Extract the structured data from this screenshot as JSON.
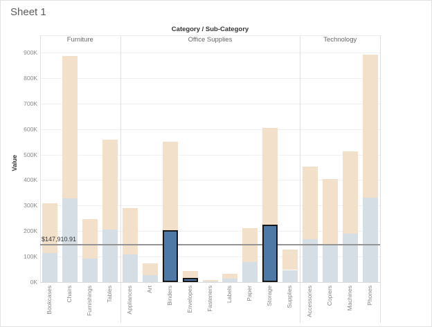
{
  "window": {
    "sheet_title": "Sheet 1"
  },
  "colors": {
    "bar_dim_blue": "#d5dde5",
    "bar_dim_orange": "#f2e0ca",
    "bar_selected_blue": "#4e79a7",
    "selection_border": "#161616",
    "reference_line": "#949494",
    "gridline": "#f0f0f0",
    "panel_border": "#e0e0e0",
    "axis_line": "#d9d9d9",
    "text_dark": "#333333",
    "text_gray": "#666666",
    "text_light": "#8a8a8a"
  },
  "chart_data": {
    "type": "bar",
    "stacked": true,
    "title": "Category / Sub-Category",
    "ylabel": "Value",
    "grid": true,
    "legend": "none",
    "ylim_k": [
      0,
      935
    ],
    "ytick_values_k": [
      0,
      100,
      200,
      300,
      400,
      500,
      600,
      700,
      800,
      900
    ],
    "ytick_labels": [
      "0K",
      "100K",
      "200K",
      "300K",
      "400K",
      "500K",
      "600K",
      "700K",
      "800K",
      "900K"
    ],
    "reference_line": {
      "value_k": 147.91,
      "label": "$147,910.91"
    },
    "series_names": [
      "blue-segment",
      "orange-segment"
    ],
    "groups": [
      {
        "label": "Furniture",
        "bars": [
          {
            "label": "Bookcases",
            "value_k": 114.9,
            "total_k": 310.2,
            "selected": false
          },
          {
            "label": "Chairs",
            "value_k": 328.4,
            "total_k": 886.8,
            "selected": false
          },
          {
            "label": "Furnishings",
            "value_k": 91.7,
            "total_k": 247.6,
            "selected": false
          },
          {
            "label": "Tables",
            "value_k": 207.0,
            "total_k": 558.9,
            "selected": false
          }
        ]
      },
      {
        "label": "Office Supplies",
        "bars": [
          {
            "label": "Appliances",
            "value_k": 107.5,
            "total_k": 290.3,
            "selected": false
          },
          {
            "label": "Art",
            "value_k": 27.1,
            "total_k": 73.2,
            "selected": false
          },
          {
            "label": "Binders",
            "value_k": 203.4,
            "total_k": 549.2,
            "selected": true
          },
          {
            "label": "Envelopes",
            "value_k": 16.5,
            "total_k": 44.5,
            "selected": true
          },
          {
            "label": "Fasteners",
            "value_k": 3.0,
            "total_k": 8.2,
            "selected": false
          },
          {
            "label": "Labels",
            "value_k": 12.5,
            "total_k": 33.7,
            "selected": false
          },
          {
            "label": "Paper",
            "value_k": 78.5,
            "total_k": 211.9,
            "selected": false
          },
          {
            "label": "Storage",
            "value_k": 223.8,
            "total_k": 604.3,
            "selected": true
          },
          {
            "label": "Supplies",
            "value_k": 46.7,
            "total_k": 126.1,
            "selected": false
          }
        ]
      },
      {
        "label": "Technology",
        "bars": [
          {
            "label": "Accessories",
            "value_k": 167.4,
            "total_k": 451.9,
            "selected": false
          },
          {
            "label": "Copiers",
            "value_k": 149.5,
            "total_k": 403.7,
            "selected": false
          },
          {
            "label": "Machines",
            "value_k": 189.2,
            "total_k": 510.9,
            "selected": false
          },
          {
            "label": "Phones",
            "value_k": 330.0,
            "total_k": 891.0,
            "selected": false
          }
        ]
      }
    ]
  }
}
